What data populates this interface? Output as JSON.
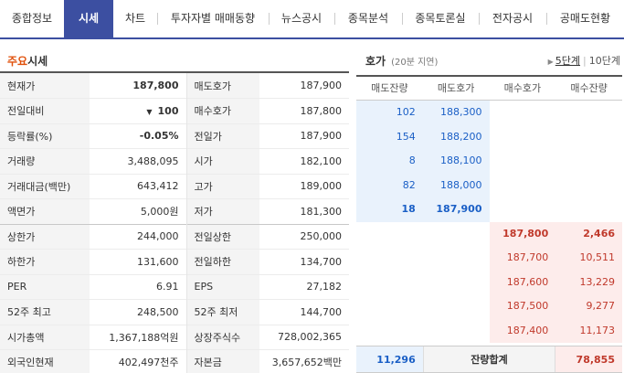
{
  "tabs": [
    {
      "label": "종합정보",
      "active": false
    },
    {
      "label": "시세",
      "active": true
    },
    {
      "label": "차트",
      "active": false
    },
    {
      "label": "투자자별 매매동향",
      "active": false
    },
    {
      "label": "뉴스공시",
      "active": false
    },
    {
      "label": "종목분석",
      "active": false
    },
    {
      "label": "종목토론실",
      "active": false
    },
    {
      "label": "전자공시",
      "active": false
    },
    {
      "label": "공매도현황",
      "active": false
    }
  ],
  "quote": {
    "title_highlight": "주요",
    "title_rest": "시세",
    "rows": [
      {
        "l1": "현재가",
        "v1": "187,800",
        "l2": "매도호가",
        "v2": "187,900"
      },
      {
        "l1": "전일대비",
        "v1_arrow": "▼",
        "v1": "100",
        "l2": "매수호가",
        "v2": "187,800"
      },
      {
        "l1": "등락률(%)",
        "v1": "-0.05%",
        "l2": "전일가",
        "v2": "187,900"
      },
      {
        "l1": "거래량",
        "v1": "3,488,095",
        "l2": "시가",
        "v2": "182,100"
      },
      {
        "l1": "거래대금(백만)",
        "v1": "643,412",
        "l2": "고가",
        "v2": "189,000"
      },
      {
        "l1": "액면가",
        "v1": "5,000원",
        "l2": "저가",
        "v2": "181,300"
      },
      {
        "l1": "상한가",
        "v1": "244,000",
        "l2": "전일상한",
        "v2": "250,000"
      },
      {
        "l1": "하한가",
        "v1": "131,600",
        "l2": "전일하한",
        "v2": "134,700"
      },
      {
        "l1": "PER",
        "v1": "6.91",
        "l2": "EPS",
        "v2": "27,182"
      },
      {
        "l1": "52주 최고",
        "v1": "248,500",
        "l2": "52주 최저",
        "v2": "144,700"
      },
      {
        "l1": "시가총액",
        "v1": "1,367,188억원",
        "l2": "상장주식수",
        "v2": "728,002,365"
      },
      {
        "l1": "외국인현재",
        "v1": "402,497천주",
        "l2": "자본금",
        "v2": "3,657,652백만"
      }
    ]
  },
  "hoga": {
    "title": "호가",
    "delay": "(20분 지연)",
    "step5": "5단계",
    "step10": "10단계",
    "headers": [
      "매도잔량",
      "매도호가",
      "매수호가",
      "매수잔량"
    ],
    "asks": [
      {
        "qty": "102",
        "price": "188,300"
      },
      {
        "qty": "154",
        "price": "188,200"
      },
      {
        "qty": "8",
        "price": "188,100"
      },
      {
        "qty": "82",
        "price": "188,000"
      },
      {
        "qty": "18",
        "price": "187,900"
      }
    ],
    "bids": [
      {
        "price": "187,800",
        "qty": "2,466"
      },
      {
        "price": "187,700",
        "qty": "10,511"
      },
      {
        "price": "187,600",
        "qty": "13,229"
      },
      {
        "price": "187,500",
        "qty": "9,277"
      },
      {
        "price": "187,400",
        "qty": "11,173"
      }
    ],
    "total_label": "잔량합계",
    "total_ask": "11,296",
    "total_bid": "78,855"
  }
}
